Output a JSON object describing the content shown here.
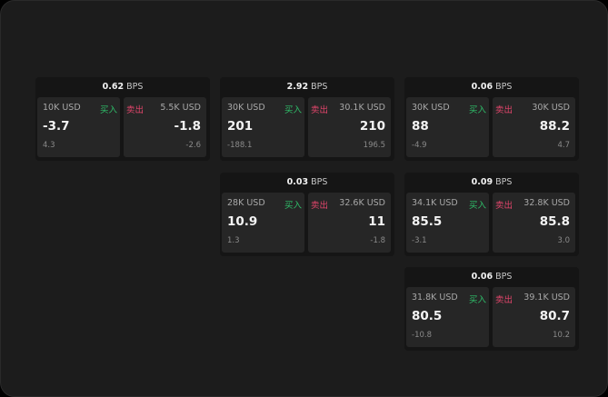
{
  "labels": {
    "buy": "买入",
    "sell": "卖出",
    "unit": "BPS"
  },
  "colors": {
    "buy": "#2fbf6a",
    "sell": "#e2456b"
  },
  "cards": [
    {
      "spread": "0.62",
      "bid": {
        "size": "10K USD",
        "price": "-3.7",
        "change": "4.3"
      },
      "ask": {
        "size": "5.5K USD",
        "price": "-1.8",
        "change": "-2.6"
      }
    },
    {
      "spread": "2.92",
      "bid": {
        "size": "30K USD",
        "price": "201",
        "change": "-188.1"
      },
      "ask": {
        "size": "30.1K USD",
        "price": "210",
        "change": "196.5"
      }
    },
    {
      "spread": "0.06",
      "bid": {
        "size": "30K USD",
        "price": "88",
        "change": "-4.9"
      },
      "ask": {
        "size": "30K USD",
        "price": "88.2",
        "change": "4.7"
      }
    },
    {
      "spread": "0.03",
      "bid": {
        "size": "28K USD",
        "price": "10.9",
        "change": "1.3"
      },
      "ask": {
        "size": "32.6K USD",
        "price": "11",
        "change": "-1.8"
      }
    },
    {
      "spread": "0.09",
      "bid": {
        "size": "34.1K USD",
        "price": "85.5",
        "change": "-3.1"
      },
      "ask": {
        "size": "32.8K USD",
        "price": "85.8",
        "change": "3.0"
      }
    },
    {
      "spread": "0.06",
      "bid": {
        "size": "31.8K USD",
        "price": "80.5",
        "change": "-10.8"
      },
      "ask": {
        "size": "39.1K USD",
        "price": "80.7",
        "change": "10.2"
      }
    }
  ]
}
